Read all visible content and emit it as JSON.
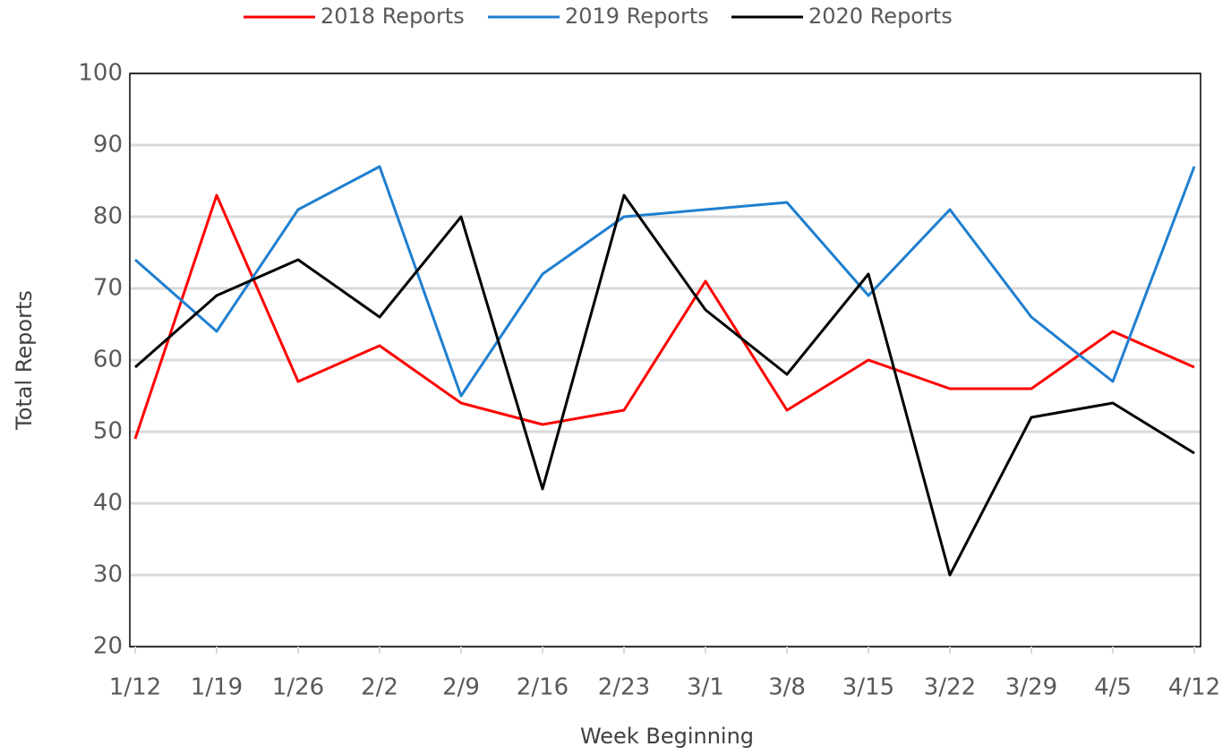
{
  "chart_data": {
    "type": "line",
    "x_label": "Week Beginning",
    "y_label": "Total Reports",
    "categories": [
      "1/12",
      "1/19",
      "1/26",
      "2/2",
      "2/9",
      "2/16",
      "2/23",
      "3/1",
      "3/8",
      "3/15",
      "3/22",
      "3/29",
      "4/5",
      "4/12"
    ],
    "series": [
      {
        "name": "2018 Reports",
        "color": "#ff0000",
        "values": [
          49,
          83,
          57,
          62,
          54,
          51,
          53,
          71,
          53,
          60,
          56,
          56,
          64,
          59
        ]
      },
      {
        "name": "2019 Reports",
        "color": "#1f7fd0",
        "values": [
          74,
          64,
          81,
          87,
          55,
          72,
          80,
          81,
          82,
          69,
          81,
          66,
          57,
          87
        ]
      },
      {
        "name": "2020 Reports",
        "color": "#000000",
        "values": [
          59,
          69,
          74,
          66,
          80,
          42,
          83,
          67,
          58,
          72,
          30,
          52,
          54,
          47
        ]
      }
    ],
    "ylim": [
      20,
      100
    ],
    "yticks": [
      20,
      30,
      40,
      50,
      60,
      70,
      80,
      90,
      100
    ],
    "grid": true,
    "legend": "top"
  }
}
